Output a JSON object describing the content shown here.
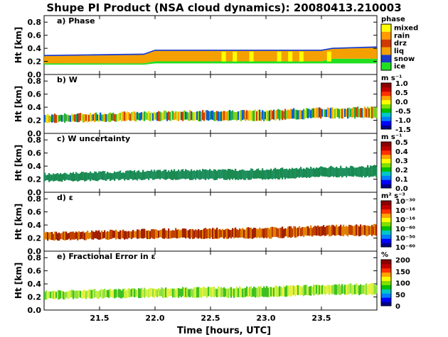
{
  "title": "Shupe PI Product (NSA cloud dynamics): 20080413.210003",
  "xaxis": {
    "label": "Time [hours, UTC]",
    "ticks": [
      "21.5",
      "22.0",
      "22.5",
      "23.0",
      "23.5"
    ],
    "tick_values": [
      21.5,
      22.0,
      22.5,
      23.0,
      23.5
    ],
    "range": [
      21.0,
      24.0
    ]
  },
  "yaxis": {
    "label": "Ht [km]",
    "ticks": [
      "0.0",
      "0.2",
      "0.4",
      "0.6",
      "0.8"
    ],
    "tick_values": [
      0.0,
      0.2,
      0.4,
      0.6,
      0.8
    ],
    "range": [
      0.0,
      0.9
    ]
  },
  "chart_data": [
    {
      "type": "heatmap",
      "title": "a) Phase",
      "colorbar": {
        "label": "phase",
        "categories": [
          {
            "name": "mixed",
            "color": "#ffff00"
          },
          {
            "name": "rain",
            "color": "#ff9a00"
          },
          {
            "name": "drz",
            "color": "#d03a00"
          },
          {
            "name": "liq",
            "color": "#f4a000"
          },
          {
            "name": "snow",
            "color": "#1a3cc8"
          },
          {
            "name": "ice",
            "color": "#20e020"
          }
        ]
      },
      "layers": [
        {
          "category": "liq",
          "x": [
            21.0,
            21.9,
            22.0,
            22.5,
            23.0,
            23.5,
            23.6,
            24.0
          ],
          "bottom": [
            0.17,
            0.17,
            0.2,
            0.2,
            0.2,
            0.2,
            0.24,
            0.24
          ],
          "top": [
            0.28,
            0.3,
            0.36,
            0.36,
            0.36,
            0.36,
            0.39,
            0.41
          ]
        },
        {
          "category": "snow",
          "x": [
            21.0,
            21.9,
            22.0,
            23.5,
            23.6,
            24.0
          ],
          "bottom": [
            0.28,
            0.3,
            0.36,
            0.36,
            0.39,
            0.41
          ],
          "top": [
            0.3,
            0.32,
            0.38,
            0.38,
            0.41,
            0.43
          ]
        },
        {
          "category": "ice",
          "x": [
            21.0,
            21.9,
            22.0,
            23.5,
            23.6,
            24.0
          ],
          "bottom": [
            0.15,
            0.15,
            0.17,
            0.17,
            0.17,
            0.17
          ],
          "top": [
            0.17,
            0.17,
            0.2,
            0.2,
            0.24,
            0.24
          ]
        }
      ]
    },
    {
      "type": "heatmap",
      "title": "b) W",
      "colorbar": {
        "label": "m s⁻¹",
        "ticks": [
          "1.0",
          "0.5",
          "0.0",
          "-0.5",
          "-1.0",
          "-1.5"
        ],
        "range": [
          -1.5,
          1.0
        ]
      },
      "layer": {
        "x": [
          21.0,
          22.0,
          23.0,
          23.5,
          24.0
        ],
        "bottom": [
          0.17,
          0.2,
          0.2,
          0.24,
          0.24
        ],
        "top": [
          0.28,
          0.33,
          0.35,
          0.38,
          0.4
        ]
      }
    },
    {
      "type": "heatmap",
      "title": "c) W uncertainty",
      "colorbar": {
        "label": "m s⁻¹",
        "ticks": [
          "0.5",
          "0.4",
          "0.3",
          "0.2",
          "0.1",
          "0.0"
        ],
        "range": [
          0.0,
          0.5
        ]
      },
      "layer": {
        "x": [
          21.0,
          22.0,
          23.0,
          23.5,
          24.0
        ],
        "bottom": [
          0.17,
          0.2,
          0.2,
          0.24,
          0.24
        ],
        "top": [
          0.28,
          0.33,
          0.35,
          0.38,
          0.4
        ]
      }
    },
    {
      "type": "heatmap",
      "title": "d) ε",
      "colorbar": {
        "label": "m² s⁻³",
        "ticks": [
          "10⁻³⁰",
          "10⁻¹⁶",
          "10⁻¹⁶",
          "10⁻⁶⁰",
          "10⁻⁵⁰",
          "10⁻⁶⁰"
        ]
      },
      "layer": {
        "x": [
          21.0,
          22.0,
          23.0,
          23.5,
          24.0
        ],
        "bottom": [
          0.17,
          0.2,
          0.2,
          0.24,
          0.24
        ],
        "top": [
          0.28,
          0.33,
          0.35,
          0.38,
          0.4
        ]
      }
    },
    {
      "type": "heatmap",
      "title": "e) Fractional Error in ε",
      "colorbar": {
        "label": "%",
        "ticks": [
          "200",
          "150",
          "100",
          "50",
          "0"
        ],
        "range": [
          0,
          200
        ]
      },
      "layer": {
        "x": [
          21.0,
          22.0,
          23.0,
          23.5,
          24.0
        ],
        "bottom": [
          0.17,
          0.2,
          0.2,
          0.24,
          0.24
        ],
        "top": [
          0.28,
          0.33,
          0.35,
          0.38,
          0.4
        ]
      }
    }
  ],
  "colors": {
    "spectrum": [
      "#00008b",
      "#0000ff",
      "#0080ff",
      "#00c8c8",
      "#00c000",
      "#80e000",
      "#ffff00",
      "#ffa500",
      "#ff3000",
      "#c00000",
      "#8b0000"
    ],
    "w": [
      "#0a5fd0",
      "#20b040",
      "#80d020",
      "#e0e020",
      "#ffa000",
      "#d04000"
    ],
    "w_unc": [
      "#1a8a50",
      "#209060"
    ],
    "eps": [
      "#c04000",
      "#e08000",
      "#a02000"
    ],
    "frac": [
      "#90e040",
      "#c0f040",
      "#40c020",
      "#e8f040"
    ]
  }
}
